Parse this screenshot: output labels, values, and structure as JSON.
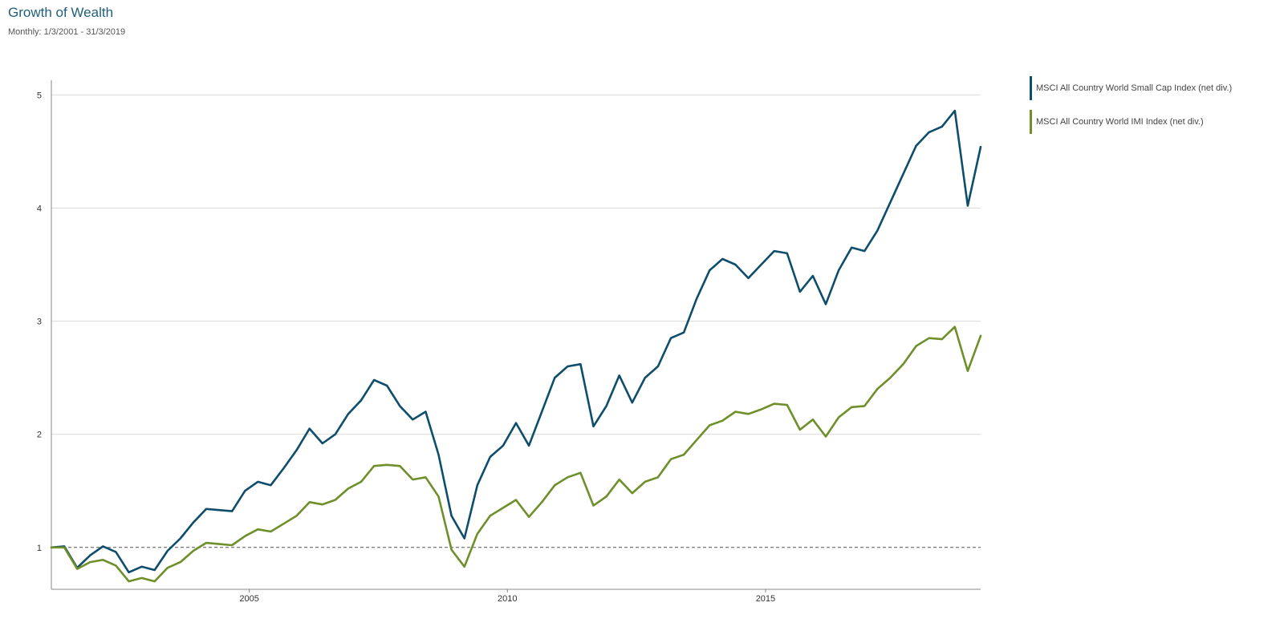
{
  "header": {
    "title": "Growth of Wealth",
    "subtitle": "Monthly: 1/3/2001 - 31/3/2019"
  },
  "chart_data": {
    "type": "line",
    "title": "Growth of Wealth",
    "subtitle": "Monthly: 1/3/2001 - 31/3/2019",
    "xlim": [
      "2001-03",
      "2019-03"
    ],
    "ylim": [
      0.63,
      5.13
    ],
    "x_ticks": [
      "2005",
      "2010",
      "2015"
    ],
    "y_ticks": [
      "1",
      "2",
      "3",
      "4",
      "5"
    ],
    "grid": true,
    "legend_position": "right",
    "reference_line": {
      "y": 1,
      "style": "dashed"
    },
    "series": [
      {
        "name": "MSCI All Country World Small Cap Index (net div.)",
        "color": "#0e4d6b",
        "points": [
          [
            "2001-03",
            1.0
          ],
          [
            "2001-06",
            1.01
          ],
          [
            "2001-09",
            0.82
          ],
          [
            "2001-12",
            0.93
          ],
          [
            "2002-03",
            1.01
          ],
          [
            "2002-06",
            0.96
          ],
          [
            "2002-09",
            0.78
          ],
          [
            "2002-12",
            0.83
          ],
          [
            "2003-03",
            0.8
          ],
          [
            "2003-06",
            0.97
          ],
          [
            "2003-09",
            1.08
          ],
          [
            "2003-12",
            1.22
          ],
          [
            "2004-03",
            1.34
          ],
          [
            "2004-06",
            1.33
          ],
          [
            "2004-09",
            1.32
          ],
          [
            "2004-12",
            1.5
          ],
          [
            "2005-03",
            1.58
          ],
          [
            "2005-06",
            1.55
          ],
          [
            "2005-09",
            1.7
          ],
          [
            "2005-12",
            1.86
          ],
          [
            "2006-03",
            2.05
          ],
          [
            "2006-06",
            1.92
          ],
          [
            "2006-09",
            2.0
          ],
          [
            "2006-12",
            2.18
          ],
          [
            "2007-03",
            2.3
          ],
          [
            "2007-06",
            2.48
          ],
          [
            "2007-09",
            2.43
          ],
          [
            "2007-12",
            2.25
          ],
          [
            "2008-03",
            2.13
          ],
          [
            "2008-06",
            2.2
          ],
          [
            "2008-09",
            1.82
          ],
          [
            "2008-12",
            1.28
          ],
          [
            "2009-03",
            1.08
          ],
          [
            "2009-06",
            1.55
          ],
          [
            "2009-09",
            1.8
          ],
          [
            "2009-12",
            1.9
          ],
          [
            "2010-03",
            2.1
          ],
          [
            "2010-06",
            1.9
          ],
          [
            "2010-09",
            2.2
          ],
          [
            "2010-12",
            2.5
          ],
          [
            "2011-03",
            2.6
          ],
          [
            "2011-06",
            2.62
          ],
          [
            "2011-09",
            2.07
          ],
          [
            "2011-12",
            2.25
          ],
          [
            "2012-03",
            2.52
          ],
          [
            "2012-06",
            2.28
          ],
          [
            "2012-09",
            2.5
          ],
          [
            "2012-12",
            2.6
          ],
          [
            "2013-03",
            2.85
          ],
          [
            "2013-06",
            2.9
          ],
          [
            "2013-09",
            3.2
          ],
          [
            "2013-12",
            3.45
          ],
          [
            "2014-03",
            3.55
          ],
          [
            "2014-06",
            3.5
          ],
          [
            "2014-09",
            3.38
          ],
          [
            "2014-12",
            3.5
          ],
          [
            "2015-03",
            3.62
          ],
          [
            "2015-06",
            3.6
          ],
          [
            "2015-09",
            3.26
          ],
          [
            "2015-12",
            3.4
          ],
          [
            "2016-03",
            3.15
          ],
          [
            "2016-06",
            3.45
          ],
          [
            "2016-09",
            3.65
          ],
          [
            "2016-12",
            3.62
          ],
          [
            "2017-03",
            3.8
          ],
          [
            "2017-06",
            4.05
          ],
          [
            "2017-09",
            4.3
          ],
          [
            "2017-12",
            4.55
          ],
          [
            "2018-03",
            4.67
          ],
          [
            "2018-06",
            4.72
          ],
          [
            "2018-09",
            4.86
          ],
          [
            "2018-12",
            4.02
          ],
          [
            "2019-03",
            4.54
          ]
        ]
      },
      {
        "name": "MSCI All Country World IMI Index (net div.)",
        "color": "#6e8f2a",
        "points": [
          [
            "2001-03",
            1.0
          ],
          [
            "2001-06",
            1.0
          ],
          [
            "2001-09",
            0.81
          ],
          [
            "2001-12",
            0.87
          ],
          [
            "2002-03",
            0.89
          ],
          [
            "2002-06",
            0.84
          ],
          [
            "2002-09",
            0.7
          ],
          [
            "2002-12",
            0.73
          ],
          [
            "2003-03",
            0.7
          ],
          [
            "2003-06",
            0.82
          ],
          [
            "2003-09",
            0.87
          ],
          [
            "2003-12",
            0.97
          ],
          [
            "2004-03",
            1.04
          ],
          [
            "2004-06",
            1.03
          ],
          [
            "2004-09",
            1.02
          ],
          [
            "2004-12",
            1.1
          ],
          [
            "2005-03",
            1.16
          ],
          [
            "2005-06",
            1.14
          ],
          [
            "2005-09",
            1.21
          ],
          [
            "2005-12",
            1.28
          ],
          [
            "2006-03",
            1.4
          ],
          [
            "2006-06",
            1.38
          ],
          [
            "2006-09",
            1.42
          ],
          [
            "2006-12",
            1.52
          ],
          [
            "2007-03",
            1.58
          ],
          [
            "2007-06",
            1.72
          ],
          [
            "2007-09",
            1.73
          ],
          [
            "2007-12",
            1.72
          ],
          [
            "2008-03",
            1.6
          ],
          [
            "2008-06",
            1.62
          ],
          [
            "2008-09",
            1.45
          ],
          [
            "2008-12",
            0.98
          ],
          [
            "2009-03",
            0.83
          ],
          [
            "2009-06",
            1.12
          ],
          [
            "2009-09",
            1.28
          ],
          [
            "2009-12",
            1.35
          ],
          [
            "2010-03",
            1.42
          ],
          [
            "2010-06",
            1.27
          ],
          [
            "2010-09",
            1.4
          ],
          [
            "2010-12",
            1.55
          ],
          [
            "2011-03",
            1.62
          ],
          [
            "2011-06",
            1.66
          ],
          [
            "2011-09",
            1.37
          ],
          [
            "2011-12",
            1.45
          ],
          [
            "2012-03",
            1.6
          ],
          [
            "2012-06",
            1.48
          ],
          [
            "2012-09",
            1.58
          ],
          [
            "2012-12",
            1.62
          ],
          [
            "2013-03",
            1.78
          ],
          [
            "2013-06",
            1.82
          ],
          [
            "2013-09",
            1.95
          ],
          [
            "2013-12",
            2.08
          ],
          [
            "2014-03",
            2.12
          ],
          [
            "2014-06",
            2.2
          ],
          [
            "2014-09",
            2.18
          ],
          [
            "2014-12",
            2.22
          ],
          [
            "2015-03",
            2.27
          ],
          [
            "2015-06",
            2.26
          ],
          [
            "2015-09",
            2.04
          ],
          [
            "2015-12",
            2.13
          ],
          [
            "2016-03",
            1.98
          ],
          [
            "2016-06",
            2.15
          ],
          [
            "2016-09",
            2.24
          ],
          [
            "2016-12",
            2.25
          ],
          [
            "2017-03",
            2.4
          ],
          [
            "2017-06",
            2.5
          ],
          [
            "2017-09",
            2.62
          ],
          [
            "2017-12",
            2.78
          ],
          [
            "2018-03",
            2.85
          ],
          [
            "2018-06",
            2.84
          ],
          [
            "2018-09",
            2.95
          ],
          [
            "2018-12",
            2.56
          ],
          [
            "2019-03",
            2.87
          ]
        ]
      }
    ]
  }
}
